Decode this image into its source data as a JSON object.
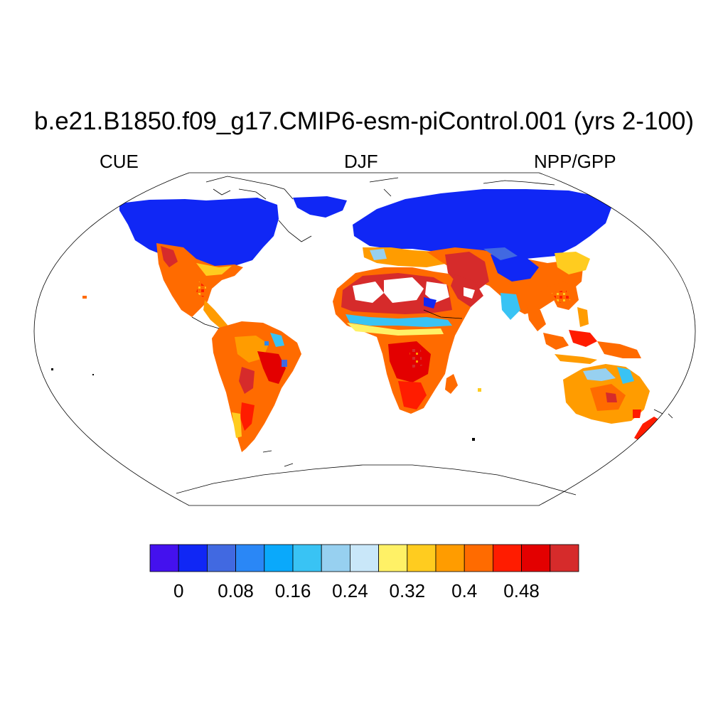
{
  "title": "b.e21.B1850.f09_g17.CMIP6-esm-piControl.001 (yrs 2-100)",
  "left_string": "CUE",
  "center_string": "DJF",
  "right_string": "NPP/GPP",
  "map": {
    "projection": "robinson",
    "field": "CUE",
    "season": "DJF",
    "missing_color": "#ffffff",
    "coastline_color": "#000000"
  },
  "colorbar": {
    "colors": [
      "#4411ee",
      "#1027f5",
      "#4169e1",
      "#2a87f6",
      "#0aa9fb",
      "#39c3f4",
      "#97d0f0",
      "#c9e7f9",
      "#fff166",
      "#ffcc1f",
      "#ff9c00",
      "#ff6b00",
      "#ff1c00",
      "#e30000",
      "#d62b2b"
    ],
    "levels": [
      0,
      0.04,
      0.08,
      0.12,
      0.16,
      0.2,
      0.24,
      0.28,
      0.32,
      0.36,
      0.4,
      0.44,
      0.48,
      0.52
    ],
    "labels": [
      {
        "value": 0,
        "text": "0"
      },
      {
        "value": 0.08,
        "text": "0.08"
      },
      {
        "value": 0.16,
        "text": "0.16"
      },
      {
        "value": 0.24,
        "text": "0.24"
      },
      {
        "value": 0.32,
        "text": "0.32"
      },
      {
        "value": 0.4,
        "text": "0.4"
      },
      {
        "value": 0.48,
        "text": "0.48"
      }
    ]
  }
}
